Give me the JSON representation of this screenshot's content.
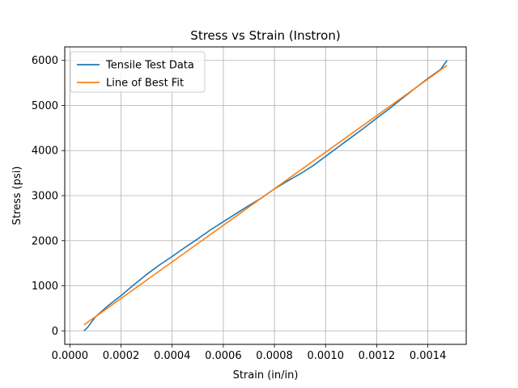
{
  "chart_data": {
    "type": "line",
    "title": "Stress vs Strain (Instron)",
    "xlabel": "Strain (in/in)",
    "ylabel": "Stress (psi)",
    "xlim": [
      -2e-05,
      0.00155
    ],
    "ylim": [
      -300,
      6300
    ],
    "xticks": [
      0.0,
      0.0002,
      0.0004,
      0.0006,
      0.0008,
      0.001,
      0.0012,
      0.0014
    ],
    "xtick_labels": [
      "0.0000",
      "0.0002",
      "0.0004",
      "0.0006",
      "0.0008",
      "0.0010",
      "0.0012",
      "0.0014"
    ],
    "yticks": [
      0,
      1000,
      2000,
      3000,
      4000,
      5000,
      6000
    ],
    "ytick_labels": [
      "0",
      "1000",
      "2000",
      "3000",
      "4000",
      "5000",
      "6000"
    ],
    "grid": true,
    "legend_position": "top-left",
    "series": [
      {
        "name": "Tensile Test Data",
        "color": "#1f77b4",
        "x": [
          5.5e-05,
          7e-05,
          0.0001,
          0.00015,
          0.0002,
          0.00025,
          0.0003,
          0.00035,
          0.0004,
          0.00045,
          0.0005,
          0.00055,
          0.0006,
          0.00065,
          0.0007,
          0.00075,
          0.0008,
          0.00085,
          0.0009,
          0.00095,
          0.001,
          0.00105,
          0.0011,
          0.00115,
          0.0012,
          0.00125,
          0.0013,
          0.00135,
          0.0014,
          0.00145,
          0.001475
        ],
        "y": [
          0,
          80,
          310,
          560,
          780,
          1020,
          1250,
          1460,
          1650,
          1850,
          2040,
          2240,
          2420,
          2600,
          2780,
          2950,
          3150,
          3320,
          3480,
          3660,
          3870,
          4080,
          4290,
          4500,
          4720,
          4930,
          5160,
          5380,
          5600,
          5800,
          6000
        ]
      },
      {
        "name": "Line of Best Fit",
        "color": "#ff7f0e",
        "x": [
          5.5e-05,
          0.001475
        ],
        "y": [
          130,
          5890
        ]
      }
    ]
  }
}
